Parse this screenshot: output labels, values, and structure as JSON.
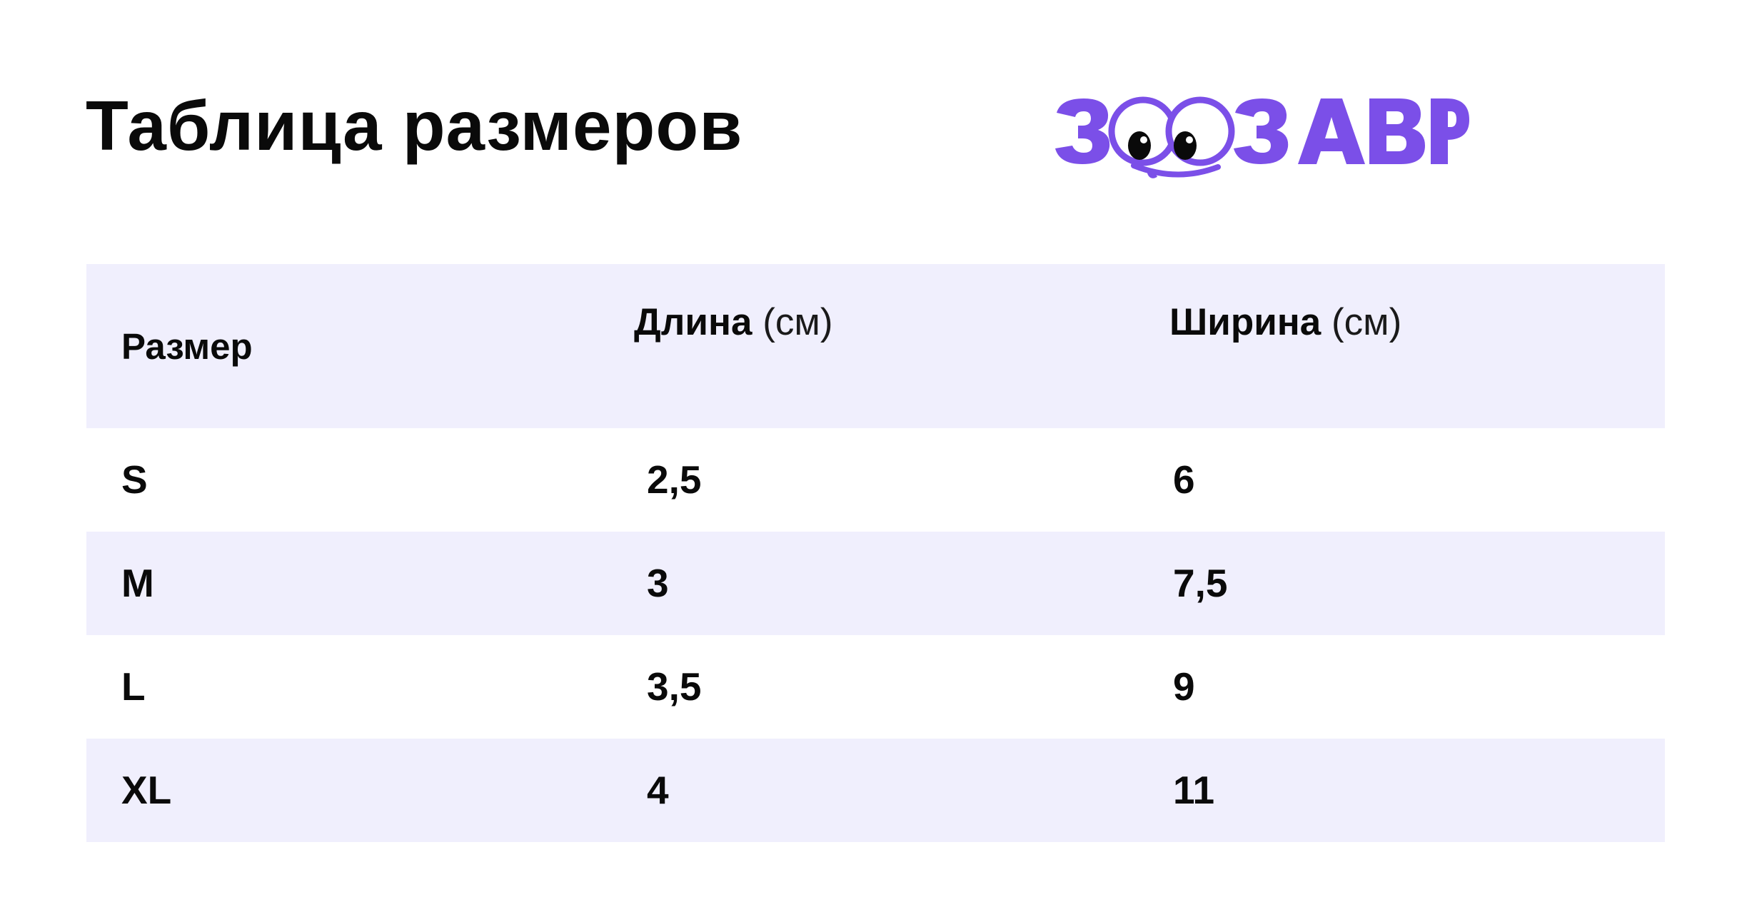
{
  "title": "Таблица размеров",
  "logo": {
    "text": "ЗООЗАВР",
    "color": "#7b4fe8",
    "icon": "zoozavr-logo-with-googly-eyes"
  },
  "table": {
    "header": {
      "size": "Размер",
      "length": "Длина",
      "length_unit": "(см)",
      "width": "Ширина",
      "width_unit": "(см)"
    },
    "rows": [
      {
        "size": "S",
        "length": "2,5",
        "width": "6"
      },
      {
        "size": "M",
        "length": "3",
        "width": "7,5"
      },
      {
        "size": "L",
        "length": "3,5",
        "width": "9"
      },
      {
        "size": "XL",
        "length": "4",
        "width": "11"
      }
    ]
  },
  "colors": {
    "accent": "#7b4fe8",
    "header_bg": "#f0effd",
    "text": "#0a0a0a"
  }
}
